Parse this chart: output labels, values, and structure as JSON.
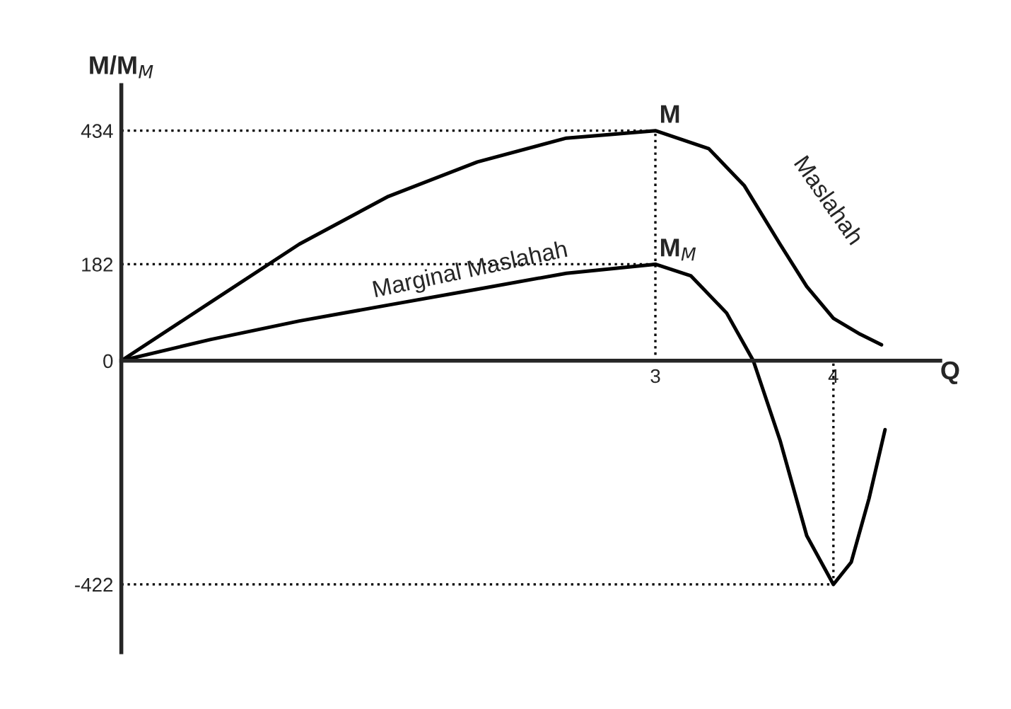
{
  "chart_data": {
    "type": "line",
    "xlabel": "Q",
    "ylabel": "M/M$_{M}$",
    "xlim": [
      0,
      4.6
    ],
    "ylim": [
      -550,
      520
    ],
    "xticks": [
      3,
      4
    ],
    "yticks": [
      -422,
      0,
      182,
      434
    ],
    "grid": false,
    "marker": "none",
    "series": [
      {
        "color": "#000000",
        "x": [
          0,
          0.5,
          1,
          1.5,
          2,
          2.5,
          3,
          3.3,
          3.5,
          3.7,
          3.85,
          4,
          4.15,
          4.27
        ],
        "values": [
          0,
          110,
          220,
          310,
          375,
          420,
          434,
          400,
          330,
          220,
          140,
          80,
          50,
          30
        ]
      },
      {
        "color": "#000000",
        "x": [
          0,
          0.5,
          1,
          1.5,
          2,
          2.5,
          3,
          3.2,
          3.4,
          3.55,
          3.7,
          3.85,
          4,
          4.1,
          4.2,
          4.29
        ],
        "values": [
          0,
          40,
          75,
          105,
          135,
          165,
          182,
          160,
          90,
          0,
          -150,
          -330,
          -422,
          -380,
          -260,
          -130
        ]
      },
      {
        "color": "#000000",
        "line_style": "dotted",
        "x": [
          0,
          3,
          3
        ],
        "values": [
          434,
          434,
          0
        ]
      },
      {
        "color": "#000000",
        "line_style": "dotted",
        "x": [
          0,
          3
        ],
        "values": [
          182,
          182
        ]
      },
      {
        "color": "#000000",
        "line_style": "dotted",
        "x": [
          0,
          4,
          4
        ],
        "values": [
          -422,
          -422,
          0
        ]
      }
    ],
    "annotations": [
      {
        "text": "M",
        "x": 3,
        "y": 434
      },
      {
        "text": "M$_{M}$",
        "x": 3,
        "y": 182
      },
      {
        "text": "Maslahah",
        "x": 3.75,
        "y": 210
      },
      {
        "text": "Marginal Maslahah",
        "x": 1.4,
        "y": 110
      }
    ]
  }
}
